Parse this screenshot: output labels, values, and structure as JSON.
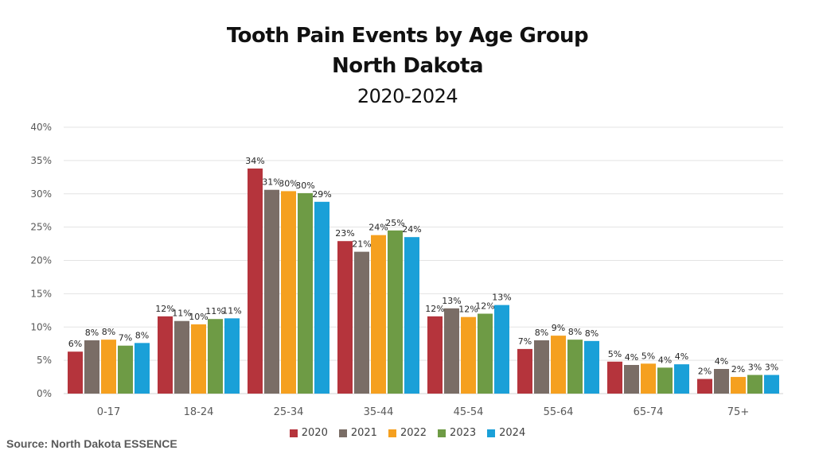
{
  "chart_data": {
    "type": "bar",
    "title": "Tooth Pain Events by Age Group",
    "title_line2": "North Dakota",
    "subtitle": "2020-2024",
    "categories": [
      "0-17",
      "18-24",
      "25-34",
      "35-44",
      "45-54",
      "55-64",
      "65-74",
      "75+"
    ],
    "series": [
      {
        "name": "2020",
        "color": "#b5343c",
        "values": [
          6.3,
          11.6,
          33.8,
          22.9,
          11.6,
          6.7,
          4.8,
          2.2
        ],
        "labels": [
          "6%",
          "12%",
          "34%",
          "23%",
          "12%",
          "7%",
          "5%",
          "2%"
        ]
      },
      {
        "name": "2021",
        "color": "#7a6d66",
        "values": [
          8.0,
          10.9,
          30.6,
          21.3,
          12.8,
          8.0,
          4.3,
          3.7
        ],
        "labels": [
          "8%",
          "11%",
          "31%",
          "21%",
          "13%",
          "8%",
          "4%",
          "4%"
        ]
      },
      {
        "name": "2022",
        "color": "#f5a01f",
        "values": [
          8.1,
          10.4,
          30.4,
          23.8,
          11.5,
          8.7,
          4.5,
          2.5
        ],
        "labels": [
          "8%",
          "10%",
          "30%",
          "24%",
          "12%",
          "9%",
          "5%",
          "2%"
        ]
      },
      {
        "name": "2023",
        "color": "#6e9b45",
        "values": [
          7.2,
          11.2,
          30.1,
          24.5,
          12.0,
          8.1,
          3.9,
          2.8
        ],
        "labels": [
          "7%",
          "11%",
          "30%",
          "25%",
          "12%",
          "8%",
          "4%",
          "3%"
        ]
      },
      {
        "name": "2024",
        "color": "#1aa0d8",
        "values": [
          7.6,
          11.3,
          28.8,
          23.5,
          13.3,
          7.9,
          4.4,
          2.8
        ],
        "labels": [
          "8%",
          "11%",
          "29%",
          "24%",
          "13%",
          "8%",
          "4%",
          "3%"
        ]
      }
    ],
    "ylim": [
      0,
      40
    ],
    "yticks": [
      "0%",
      "5%",
      "10%",
      "15%",
      "20%",
      "25%",
      "30%",
      "35%",
      "40%"
    ],
    "grid": true,
    "legend_position": "bottom",
    "source": "Source: North Dakota ESSENCE"
  }
}
